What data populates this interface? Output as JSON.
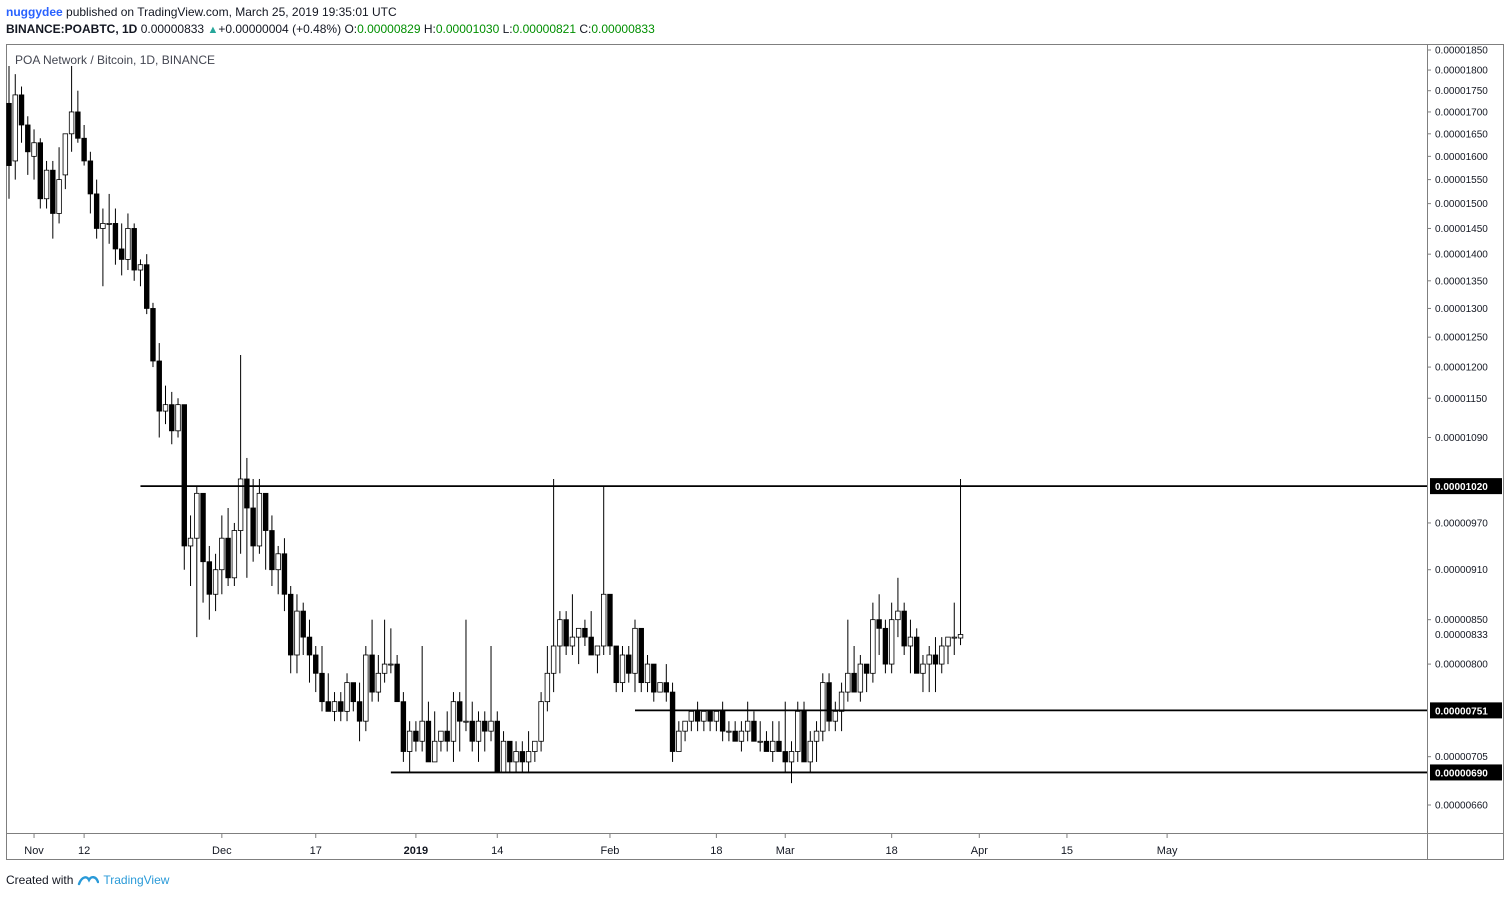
{
  "header": {
    "author": "nuggydee",
    "published_text": "published on TradingView.com, March 25, 2019 19:35:01 UTC",
    "symbol": "BINANCE:POABTC, 1D",
    "last": "0.00000833",
    "change": "+0.00000004 (+0.48%)",
    "o_label": "O:",
    "o": "0.00000829",
    "h_label": "H:",
    "h": "0.00001030",
    "l_label": "L:",
    "l": "0.00000821",
    "c_label": "C:",
    "c": "0.00000833"
  },
  "footer": {
    "created_with": "Created with",
    "brand": "TradingView"
  },
  "colors": {
    "frame": "#7f7f7f",
    "candle_fill_down": "#000000",
    "candle_fill_up": "#ffffff",
    "line": "#000000"
  },
  "chart_data": {
    "type": "candlestick",
    "title": "POA Network / Bitcoin, 1D, BINANCE",
    "scale": "log",
    "ylim": [
      6.3e-06,
      1.92e-05
    ],
    "y_ticks": [
      "0.00000660",
      "0.00000705",
      "0.00000800",
      "0.00000850",
      "0.00000910",
      "0.00000970",
      "0.00001090",
      "0.00001150",
      "0.00001200",
      "0.00001250",
      "0.00001300",
      "0.00001350",
      "0.00001400",
      "0.00001450",
      "0.00001500",
      "0.00001550",
      "0.00001600",
      "0.00001650",
      "0.00001700",
      "0.00001750",
      "0.00001800",
      "0.00001850"
    ],
    "price_labels": [
      {
        "text": "0.00001020",
        "value": 1.02e-05,
        "style": "box"
      },
      {
        "text": "0.00000833",
        "value": 8.33e-06,
        "style": "plain"
      },
      {
        "text": "0.00000751",
        "value": 7.51e-06,
        "style": "box"
      },
      {
        "text": "0.00000690",
        "value": 6.9e-06,
        "style": "box"
      }
    ],
    "x_ticks": [
      {
        "label": "Nov",
        "day": 4,
        "bold": false
      },
      {
        "label": "12",
        "day": 12,
        "bold": false
      },
      {
        "label": "Dec",
        "day": 34,
        "bold": false
      },
      {
        "label": "17",
        "day": 49,
        "bold": false
      },
      {
        "label": "2019",
        "day": 65,
        "bold": true
      },
      {
        "label": "14",
        "day": 78,
        "bold": false
      },
      {
        "label": "Feb",
        "day": 96,
        "bold": false
      },
      {
        "label": "18",
        "day": 113,
        "bold": false
      },
      {
        "label": "Mar",
        "day": 124,
        "bold": false
      },
      {
        "label": "18",
        "day": 141,
        "bold": false
      },
      {
        "label": "Apr",
        "day": 155,
        "bold": false
      },
      {
        "label": "15",
        "day": 169,
        "bold": false
      },
      {
        "label": "May",
        "day": 185,
        "bold": false
      }
    ],
    "levels": [
      {
        "name": "resistance",
        "value": 1.02e-05,
        "from_day": 21,
        "to_day": 188
      },
      {
        "name": "range-top",
        "value": 7.51e-06,
        "from_day": 100,
        "to_day": 188
      },
      {
        "name": "support",
        "value": 6.9e-06,
        "from_day": 61,
        "to_day": 188
      }
    ],
    "candles": [
      [
        1.72e-05,
        1.81e-05,
        1.51e-05,
        1.58e-05
      ],
      [
        1.59e-05,
        1.79e-05,
        1.55e-05,
        1.74e-05
      ],
      [
        1.74e-05,
        1.76e-05,
        1.63e-05,
        1.67e-05
      ],
      [
        1.67e-05,
        1.69e-05,
        1.56e-05,
        1.61e-05
      ],
      [
        1.6e-05,
        1.66e-05,
        1.55e-05,
        1.63e-05
      ],
      [
        1.63e-05,
        1.64e-05,
        1.49e-05,
        1.51e-05
      ],
      [
        1.51e-05,
        1.59e-05,
        1.49e-05,
        1.57e-05
      ],
      [
        1.57e-05,
        1.59e-05,
        1.43e-05,
        1.48e-05
      ],
      [
        1.48e-05,
        1.62e-05,
        1.46e-05,
        1.55e-05
      ],
      [
        1.56e-05,
        1.65e-05,
        1.53e-05,
        1.65e-05
      ],
      [
        1.65e-05,
        1.81e-05,
        1.61e-05,
        1.7e-05
      ],
      [
        1.7e-05,
        1.75e-05,
        1.63e-05,
        1.64e-05
      ],
      [
        1.64e-05,
        1.67e-05,
        1.58e-05,
        1.59e-05
      ],
      [
        1.59e-05,
        1.61e-05,
        1.48e-05,
        1.52e-05
      ],
      [
        1.52e-05,
        1.55e-05,
        1.43e-05,
        1.45e-05
      ],
      [
        1.45e-05,
        1.49e-05,
        1.34e-05,
        1.46e-05
      ],
      [
        1.46e-05,
        1.52e-05,
        1.42e-05,
        1.46e-05
      ],
      [
        1.46e-05,
        1.49e-05,
        1.38e-05,
        1.41e-05
      ],
      [
        1.41e-05,
        1.46e-05,
        1.36e-05,
        1.39e-05
      ],
      [
        1.39e-05,
        1.48e-05,
        1.37e-05,
        1.45e-05
      ],
      [
        1.45e-05,
        1.46e-05,
        1.35e-05,
        1.37e-05
      ],
      [
        1.37e-05,
        1.39e-05,
        1.34e-05,
        1.38e-05
      ],
      [
        1.38e-05,
        1.4e-05,
        1.29e-05,
        1.3e-05
      ],
      [
        1.3e-05,
        1.31e-05,
        1.2e-05,
        1.21e-05
      ],
      [
        1.21e-05,
        1.24e-05,
        1.09e-05,
        1.13e-05
      ],
      [
        1.13e-05,
        1.17e-05,
        1.11e-05,
        1.14e-05
      ],
      [
        1.14e-05,
        1.16e-05,
        1.08e-05,
        1.1e-05
      ],
      [
        1.1e-05,
        1.15e-05,
        1.09e-05,
        1.14e-05
      ],
      [
        1.14e-05,
        1.14e-05,
        9.1e-06,
        9.4e-06
      ],
      [
        9.4e-06,
        9.8e-06,
        8.9e-06,
        9.5e-06
      ],
      [
        9.5e-06,
        1.02e-05,
        8.3e-06,
        1.01e-05
      ],
      [
        1.01e-05,
        1.01e-05,
        8.7e-06,
        9.2e-06
      ],
      [
        9.2e-06,
        9.4e-06,
        8.5e-06,
        8.8e-06
      ],
      [
        8.8e-06,
        9.3e-06,
        8.6e-06,
        9.1e-06
      ],
      [
        9.1e-06,
        9.8e-06,
        8.8e-06,
        9.5e-06
      ],
      [
        9.5e-06,
        9.9e-06,
        8.9e-06,
        9e-06
      ],
      [
        9e-06,
        9.7e-06,
        8.9e-06,
        9.6e-06
      ],
      [
        9.6e-06,
        1.22e-05,
        9.3e-06,
        1.03e-05
      ],
      [
        1.03e-05,
        1.06e-05,
        9e-06,
        9.9e-06
      ],
      [
        9.9e-06,
        1.03e-05,
        9.2e-06,
        9.4e-06
      ],
      [
        9.4e-06,
        1.03e-05,
        9.3e-06,
        1.01e-05
      ],
      [
        1.01e-05,
        1.01e-05,
        9.1e-06,
        9.6e-06
      ],
      [
        9.6e-06,
        9.8e-06,
        8.9e-06,
        9.1e-06
      ],
      [
        9.1e-06,
        9.4e-06,
        8.8e-06,
        9.3e-06
      ],
      [
        9.3e-06,
        9.5e-06,
        8.6e-06,
        8.8e-06
      ],
      [
        8.8e-06,
        8.9e-06,
        7.9e-06,
        8.1e-06
      ],
      [
        8.1e-06,
        8.8e-06,
        7.9e-06,
        8.6e-06
      ],
      [
        8.6e-06,
        8.7e-06,
        8.1e-06,
        8.3e-06
      ],
      [
        8.3e-06,
        8.5e-06,
        7.8e-06,
        8.1e-06
      ],
      [
        8.1e-06,
        8.2e-06,
        7.7e-06,
        7.9e-06
      ],
      [
        7.9e-06,
        8.2e-06,
        7.5e-06,
        7.6e-06
      ],
      [
        7.6e-06,
        7.9e-06,
        7.5e-06,
        7.5e-06
      ],
      [
        7.5e-06,
        7.7e-06,
        7.4e-06,
        7.6e-06
      ],
      [
        7.6e-06,
        7.7e-06,
        7.4e-06,
        7.5e-06
      ],
      [
        7.5e-06,
        7.9e-06,
        7.4e-06,
        7.8e-06
      ],
      [
        7.8e-06,
        7.8e-06,
        7.5e-06,
        7.6e-06
      ],
      [
        7.6e-06,
        7.8e-06,
        7.2e-06,
        7.4e-06
      ],
      [
        7.4e-06,
        8.2e-06,
        7.3e-06,
        8.1e-06
      ],
      [
        8.1e-06,
        8.5e-06,
        7.6e-06,
        7.7e-06
      ],
      [
        7.7e-06,
        8.1e-06,
        7.6e-06,
        7.9e-06
      ],
      [
        7.9e-06,
        8.5e-06,
        7.8e-06,
        8e-06
      ],
      [
        8e-06,
        8.4e-06,
        7.9e-06,
        8e-06
      ],
      [
        8e-06,
        8.1e-06,
        7.6e-06,
        7.6e-06
      ],
      [
        7.6e-06,
        7.7e-06,
        7e-06,
        7.1e-06
      ],
      [
        7.1e-06,
        7.4e-06,
        6.9e-06,
        7.3e-06
      ],
      [
        7.3e-06,
        7.4e-06,
        7.1e-06,
        7.2e-06
      ],
      [
        7.2e-06,
        8.2e-06,
        7.1e-06,
        7.4e-06
      ],
      [
        7.4e-06,
        7.6e-06,
        7e-06,
        7e-06
      ],
      [
        7e-06,
        7.5e-06,
        7e-06,
        7.2e-06
      ],
      [
        7.2e-06,
        7.3e-06,
        7.1e-06,
        7.3e-06
      ],
      [
        7.3e-06,
        7.5e-06,
        7.1e-06,
        7.2e-06
      ],
      [
        7.2e-06,
        7.7e-06,
        7e-06,
        7.6e-06
      ],
      [
        7.6e-06,
        7.7e-06,
        7.1e-06,
        7.4e-06
      ],
      [
        7.4e-06,
        8.5e-06,
        7.3e-06,
        7.4e-06
      ],
      [
        7.4e-06,
        7.6e-06,
        7.1e-06,
        7.2e-06
      ],
      [
        7.2e-06,
        7.5e-06,
        7e-06,
        7.4e-06
      ],
      [
        7.4e-06,
        7.5e-06,
        7.1e-06,
        7.3e-06
      ],
      [
        7.3e-06,
        8.2e-06,
        7.2e-06,
        7.4e-06
      ],
      [
        7.4e-06,
        7.5e-06,
        6.9e-06,
        6.9e-06
      ],
      [
        6.9e-06,
        7.3e-06,
        6.9e-06,
        7.2e-06
      ],
      [
        7.2e-06,
        7.2e-06,
        6.9e-06,
        7e-06
      ],
      [
        7e-06,
        7.2e-06,
        6.9e-06,
        7.1e-06
      ],
      [
        7.1e-06,
        7.2e-06,
        6.9e-06,
        7e-06
      ],
      [
        7e-06,
        7.3e-06,
        6.9e-06,
        7.1e-06
      ],
      [
        7.1e-06,
        7.2e-06,
        7e-06,
        7.2e-06
      ],
      [
        7.2e-06,
        7.7e-06,
        7.1e-06,
        7.6e-06
      ],
      [
        7.6e-06,
        8.2e-06,
        7.5e-06,
        7.9e-06
      ],
      [
        7.9e-06,
        1.03e-05,
        7.7e-06,
        8.2e-06
      ],
      [
        8.2e-06,
        8.6e-06,
        7.9e-06,
        8.5e-06
      ],
      [
        8.5e-06,
        8.6e-06,
        8.1e-06,
        8.2e-06
      ],
      [
        8.2e-06,
        8.8e-06,
        8.1e-06,
        8.3e-06
      ],
      [
        8.3e-06,
        8.4e-06,
        8e-06,
        8.4e-06
      ],
      [
        8.4e-06,
        8.5e-06,
        8.2e-06,
        8.3e-06
      ],
      [
        8.3e-06,
        8.6e-06,
        8.1e-06,
        8.1e-06
      ],
      [
        8.1e-06,
        8.2e-06,
        7.9e-06,
        8.2e-06
      ],
      [
        8.2e-06,
        1.02e-05,
        8.1e-06,
        8.8e-06
      ],
      [
        8.8e-06,
        8.8e-06,
        8.1e-06,
        8.2e-06
      ],
      [
        8.2e-06,
        8.2e-06,
        7.7e-06,
        7.8e-06
      ],
      [
        7.8e-06,
        8.2e-06,
        7.7e-06,
        8.1e-06
      ],
      [
        8.1e-06,
        8.2e-06,
        7.8e-06,
        7.9e-06
      ],
      [
        7.9e-06,
        8.5e-06,
        7.7e-06,
        8.4e-06
      ],
      [
        8.4e-06,
        8.4e-06,
        7.7e-06,
        7.8e-06
      ],
      [
        7.8e-06,
        8.1e-06,
        7.7e-06,
        8e-06
      ],
      [
        8e-06,
        8e-06,
        7.6e-06,
        7.7e-06
      ],
      [
        7.7e-06,
        7.8e-06,
        7.7e-06,
        7.8e-06
      ],
      [
        7.8e-06,
        8e-06,
        7.6e-06,
        7.7e-06
      ],
      [
        7.7e-06,
        7.8e-06,
        7e-06,
        7.1e-06
      ],
      [
        7.1e-06,
        7.4e-06,
        7.1e-06,
        7.3e-06
      ],
      [
        7.3e-06,
        7.4e-06,
        7.2e-06,
        7.4e-06
      ],
      [
        7.4e-06,
        7.5e-06,
        7.3e-06,
        7.5e-06
      ],
      [
        7.5e-06,
        7.6e-06,
        7.3e-06,
        7.4e-06
      ],
      [
        7.4e-06,
        7.5e-06,
        7.3e-06,
        7.5e-06
      ],
      [
        7.5e-06,
        7.5e-06,
        7.3e-06,
        7.4e-06
      ],
      [
        7.4e-06,
        7.5e-06,
        7.3e-06,
        7.5e-06
      ],
      [
        7.5e-06,
        7.6e-06,
        7.2e-06,
        7.3e-06
      ],
      [
        7.3e-06,
        7.4e-06,
        7.2e-06,
        7.3e-06
      ],
      [
        7.3e-06,
        7.4e-06,
        7.2e-06,
        7.2e-06
      ],
      [
        7.2e-06,
        7.4e-06,
        7.1e-06,
        7.3e-06
      ],
      [
        7.3e-06,
        7.6e-06,
        7.2e-06,
        7.4e-06
      ],
      [
        7.4e-06,
        7.5e-06,
        7.2e-06,
        7.2e-06
      ],
      [
        7.2e-06,
        7.4e-06,
        7.1e-06,
        7.2e-06
      ],
      [
        7.2e-06,
        7.3e-06,
        7.1e-06,
        7.1e-06
      ],
      [
        7.1e-06,
        7.4e-06,
        7e-06,
        7.2e-06
      ],
      [
        7.2e-06,
        7.4e-06,
        7.1e-06,
        7.1e-06
      ],
      [
        7.1e-06,
        7.6e-06,
        6.9e-06,
        7e-06
      ],
      [
        7e-06,
        7.2e-06,
        6.8e-06,
        7.1e-06
      ],
      [
        7.1e-06,
        7.6e-06,
        7e-06,
        7.5e-06
      ],
      [
        7.5e-06,
        7.6e-06,
        7e-06,
        7e-06
      ],
      [
        7e-06,
        7.3e-06,
        6.9e-06,
        7.2e-06
      ],
      [
        7.2e-06,
        7.4e-06,
        7e-06,
        7.3e-06
      ],
      [
        7.3e-06,
        7.9e-06,
        7.2e-06,
        7.8e-06
      ],
      [
        7.8e-06,
        7.9e-06,
        7.3e-06,
        7.4e-06
      ],
      [
        7.4e-06,
        7.6e-06,
        7.3e-06,
        7.5e-06
      ],
      [
        7.5e-06,
        7.8e-06,
        7.3e-06,
        7.7e-06
      ],
      [
        7.7e-06,
        8.5e-06,
        7.6e-06,
        7.9e-06
      ],
      [
        7.9e-06,
        8.2e-06,
        7.7e-06,
        7.7e-06
      ],
      [
        7.7e-06,
        8.1e-06,
        7.6e-06,
        8e-06
      ],
      [
        8e-06,
        8e-06,
        7.7e-06,
        7.9e-06
      ],
      [
        7.9e-06,
        8.7e-06,
        7.8e-06,
        8.5e-06
      ],
      [
        8.5e-06,
        8.8e-06,
        8.1e-06,
        8.4e-06
      ],
      [
        8.4e-06,
        8.5e-06,
        7.9e-06,
        8e-06
      ],
      [
        8e-06,
        8.7e-06,
        7.9e-06,
        8.5e-06
      ],
      [
        8.5e-06,
        9e-06,
        8.3e-06,
        8.6e-06
      ],
      [
        8.6e-06,
        8.7e-06,
        8.1e-06,
        8.2e-06
      ],
      [
        8.2e-06,
        8.5e-06,
        7.9e-06,
        8.3e-06
      ],
      [
        8.3e-06,
        8.4e-06,
        7.9e-06,
        7.9e-06
      ],
      [
        7.9e-06,
        8.1e-06,
        7.7e-06,
        8e-06
      ],
      [
        8e-06,
        8.2e-06,
        7.7e-06,
        8.1e-06
      ],
      [
        8.1e-06,
        8.3e-06,
        7.7e-06,
        8e-06
      ],
      [
        8e-06,
        8.3e-06,
        7.9e-06,
        8.2e-06
      ],
      [
        8.2e-06,
        8.3e-06,
        8e-06,
        8.3e-06
      ],
      [
        8.3e-06,
        8.7e-06,
        8.1e-06,
        8.3e-06
      ],
      [
        8.29e-06,
        1.03e-05,
        8.21e-06,
        8.33e-06
      ]
    ]
  }
}
